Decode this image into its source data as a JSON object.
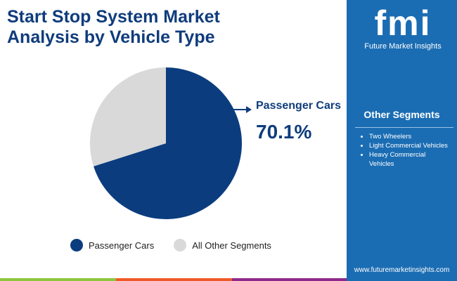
{
  "title_line1": "Start Stop System Market",
  "title_line2": "Analysis by Vehicle Type",
  "brand": {
    "logo_text": "fmi",
    "name": "Future Market Insights",
    "url": "www.futuremarketinsights.com"
  },
  "sidebar": {
    "heading": "Other Segments",
    "items": [
      "Two Wheelers",
      "Light Commercial Vehicles",
      "Heavy Commercial Vehicles"
    ]
  },
  "callout": {
    "label": "Passenger Cars",
    "value": "70.1%"
  },
  "colors": {
    "primary": "#0b3d7e",
    "other": "#d9d9d9",
    "sidebar": "#1b6db3"
  },
  "chart_data": {
    "type": "pie",
    "categories": [
      "Passenger Cars",
      "All Other Segments"
    ],
    "values": [
      70.1,
      29.9
    ],
    "legend": "bottom"
  }
}
